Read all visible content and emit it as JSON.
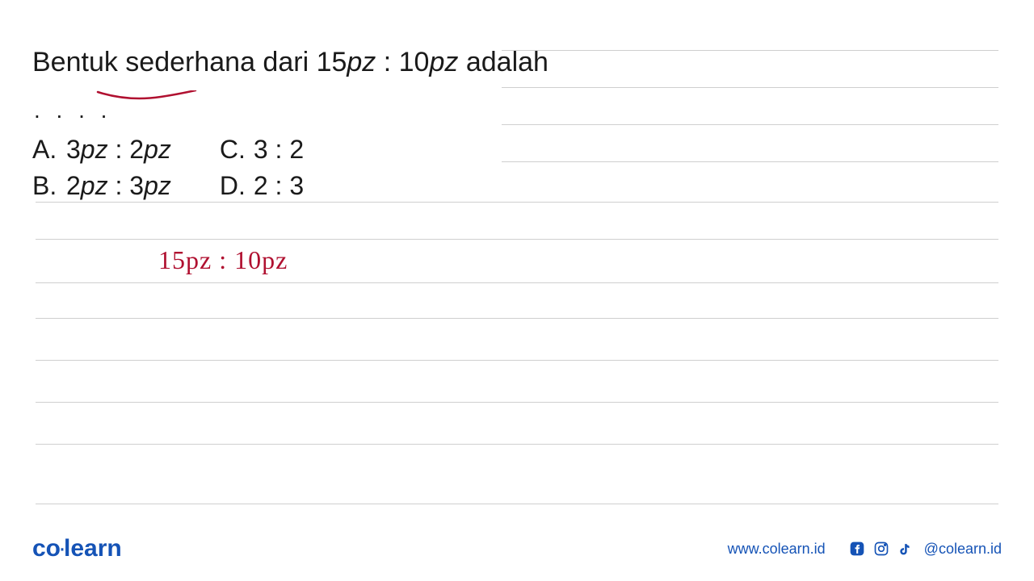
{
  "question": {
    "prefix": "Bentuk sederhana dari 15",
    "mid1": "pz",
    "mid2": " : 10",
    "mid3": "pz",
    "suffix": " adalah"
  },
  "dots": ". . . .",
  "options": {
    "a_label": "A.",
    "a_value": "3pz : 2pz",
    "b_label": "B.",
    "b_value": "2pz : 3pz",
    "c_label": "C.",
    "c_value": "3 : 2",
    "d_label": "D.",
    "d_value": "2 : 3"
  },
  "handwritten": "15pz  :  10pz",
  "paper": {
    "line_color": "#cfcfcf",
    "line_positions": [
      250,
      296,
      350,
      394,
      446,
      498,
      550,
      624
    ],
    "right_line_positions": [
      62,
      108,
      154,
      200
    ]
  },
  "underline": {
    "stroke_color": "#b01030",
    "stroke_width": 2.5
  },
  "footer": {
    "brand_co": "co",
    "brand_dot": "·",
    "brand_learn": "learn",
    "website": "www.colearn.id",
    "handle": "@colearn.id",
    "icon_color": "#1553b6"
  }
}
